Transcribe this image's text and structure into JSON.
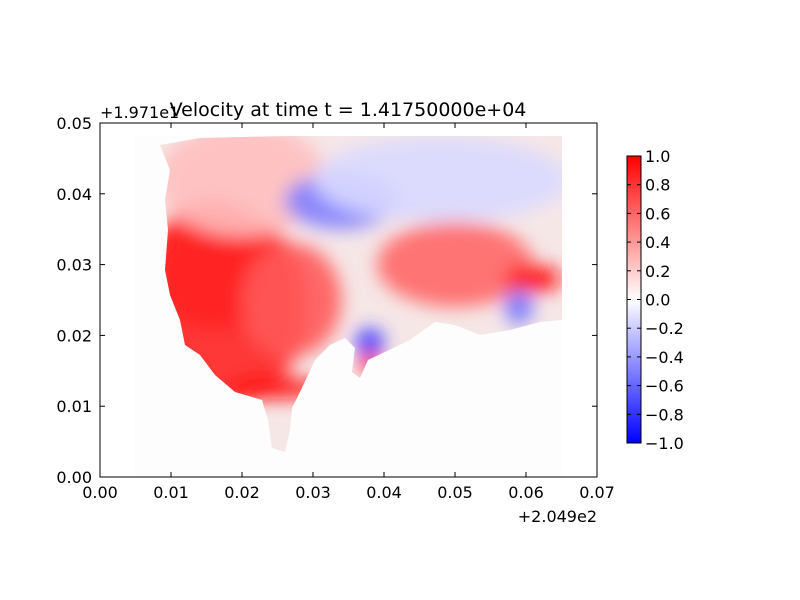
{
  "chart_data": {
    "type": "heatmap",
    "title": "Velocity at time t = 1.41750000e+04",
    "x_axis": {
      "range": [
        0.0,
        0.07
      ],
      "ticks": [
        0.0,
        0.01,
        0.02,
        0.03,
        0.04,
        0.05,
        0.06,
        0.07
      ],
      "tick_labels": [
        "0.00",
        "0.01",
        "0.02",
        "0.03",
        "0.04",
        "0.05",
        "0.06",
        "0.07"
      ],
      "offset_label": "+2.049e2"
    },
    "y_axis": {
      "range": [
        0.0,
        0.05
      ],
      "ticks": [
        0.0,
        0.01,
        0.02,
        0.03,
        0.04,
        0.05
      ],
      "tick_labels": [
        "0.00",
        "0.01",
        "0.02",
        "0.03",
        "0.04",
        "0.05"
      ],
      "offset_label": "+1.971e1"
    },
    "colorbar": {
      "colormap": "bwr",
      "range": [
        -1.0,
        1.0
      ],
      "ticks": [
        1.0,
        0.8,
        0.6,
        0.4,
        0.2,
        0.0,
        -0.2,
        -0.4,
        -0.6,
        -0.8,
        -1.0
      ],
      "tick_labels": [
        "1.0",
        "0.8",
        "0.6",
        "0.4",
        "0.2",
        "0.0",
        "−0.2",
        "−0.4",
        "−0.6",
        "−0.8",
        "−1.0"
      ],
      "colors": {
        "low": "#0000ff",
        "mid": "#ffffff",
        "high": "#ff0000"
      }
    },
    "field": {
      "data_extent_x": [
        0.005,
        0.065
      ],
      "data_extent_y": [
        0.005,
        0.048
      ],
      "regions": [
        {
          "name": "western strong positive",
          "cx": 0.016,
          "cy": 0.03,
          "rx": 0.009,
          "ry": 0.009,
          "value": 1.0
        },
        {
          "name": "western positive band",
          "cx": 0.018,
          "cy": 0.024,
          "rx": 0.011,
          "ry": 0.014,
          "value": 0.85
        },
        {
          "name": "northwest light positive",
          "cx": 0.02,
          "cy": 0.042,
          "rx": 0.012,
          "ry": 0.008,
          "value": 0.25
        },
        {
          "name": "central positive",
          "cx": 0.027,
          "cy": 0.025,
          "rx": 0.007,
          "ry": 0.008,
          "value": 0.65
        },
        {
          "name": "southern jet",
          "cx": 0.025,
          "cy": 0.0125,
          "rx": 0.007,
          "ry": 0.0015,
          "value": 0.95
        },
        {
          "name": "northern negative",
          "cx": 0.034,
          "cy": 0.039,
          "rx": 0.008,
          "ry": 0.004,
          "value": -0.5
        },
        {
          "name": "northeast weak negative",
          "cx": 0.048,
          "cy": 0.042,
          "rx": 0.018,
          "ry": 0.006,
          "value": -0.15
        },
        {
          "name": "eastern positive",
          "cx": 0.05,
          "cy": 0.03,
          "rx": 0.011,
          "ry": 0.006,
          "value": 0.6
        },
        {
          "name": "far east strong positive",
          "cx": 0.061,
          "cy": 0.028,
          "rx": 0.004,
          "ry": 0.002,
          "value": 0.95
        },
        {
          "name": "east negative patch",
          "cx": 0.059,
          "cy": 0.024,
          "rx": 0.002,
          "ry": 0.0025,
          "value": -0.55
        },
        {
          "name": "inlet negative",
          "cx": 0.038,
          "cy": 0.019,
          "rx": 0.002,
          "ry": 0.002,
          "value": -0.8
        },
        {
          "name": "inlet positive",
          "cx": 0.038,
          "cy": 0.016,
          "rx": 0.0015,
          "ry": 0.0015,
          "value": 0.85
        }
      ]
    }
  }
}
